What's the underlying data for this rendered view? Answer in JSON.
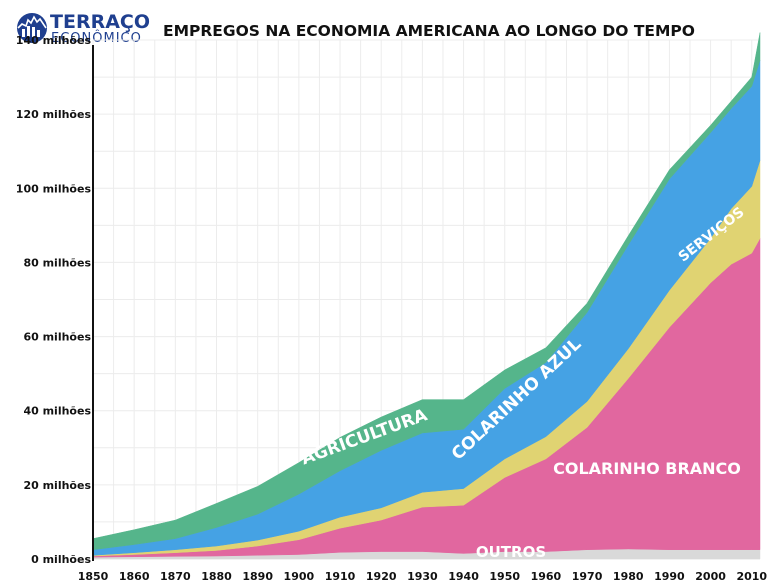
{
  "logo": {
    "name": "TERRAÇO",
    "sub": "ECONÔMICO",
    "color": "#1f3f8f"
  },
  "chart_data": {
    "type": "area",
    "stacked": true,
    "title": "EMPREGOS NA ECONOMIA AMERICANA AO LONGO DO TEMPO",
    "xlabel": "",
    "ylabel": "",
    "x": [
      1850,
      1860,
      1870,
      1880,
      1890,
      1900,
      1910,
      1920,
      1930,
      1940,
      1950,
      1960,
      1970,
      1980,
      1990,
      2000,
      2005,
      2010,
      2012
    ],
    "x_ticks": [
      1850,
      1860,
      1870,
      1880,
      1890,
      1900,
      1910,
      1920,
      1930,
      1940,
      1950,
      1960,
      1970,
      1980,
      1990,
      2000,
      2010
    ],
    "ylim": [
      0,
      140
    ],
    "y_ticks": [
      0,
      20,
      40,
      60,
      80,
      100,
      120,
      140
    ],
    "y_tick_labels": [
      "0 milhões",
      "20 milhões",
      "40 milhões",
      "60 milhões",
      "80 milhões",
      "100 milhões",
      "120 milhões",
      "140 milhões"
    ],
    "grid": true,
    "series": [
      {
        "name": "OUTROS",
        "color": "#d9d9d9",
        "values": [
          0.5,
          0.6,
          0.7,
          0.8,
          1.0,
          1.2,
          1.8,
          2.0,
          2.0,
          1.5,
          2.0,
          2.0,
          2.5,
          2.7,
          2.5,
          2.5,
          2.5,
          2.5,
          2.5
        ]
      },
      {
        "name": "COLARINHO BRANCO",
        "color": "#e1679f",
        "values": [
          0.3,
          0.6,
          1.0,
          1.5,
          2.5,
          4.0,
          6.5,
          8.5,
          12.0,
          13.0,
          20.0,
          25.0,
          33.0,
          46.0,
          60.0,
          72.0,
          77.0,
          80.0,
          84.0
        ]
      },
      {
        "name": "SERVIÇOS",
        "color": "#e0d372",
        "values": [
          0.2,
          0.5,
          0.8,
          1.2,
          1.6,
          2.3,
          3.0,
          3.3,
          4.0,
          4.5,
          5.0,
          6.0,
          7.0,
          8.0,
          10.0,
          12.0,
          15.0,
          18.0,
          21.0
        ]
      },
      {
        "name": "COLARINHO AZUL",
        "color": "#45a2e4",
        "values": [
          1.5,
          2.2,
          3.0,
          5.0,
          7.0,
          10.0,
          12.5,
          15.5,
          16.0,
          16.0,
          19.0,
          20.0,
          24.0,
          28.0,
          30.0,
          28.5,
          27.0,
          27.0,
          27.0
        ]
      },
      {
        "name": "AGRICULTURA",
        "color": "#55b58b",
        "values": [
          3.0,
          4.0,
          5.0,
          6.5,
          7.5,
          8.5,
          9.0,
          9.0,
          9.0,
          8.0,
          5.0,
          4.0,
          2.5,
          2.5,
          2.5,
          2.0,
          2.0,
          2.5,
          7.5
        ]
      }
    ],
    "area_labels": [
      "AGRICULTURA",
      "COLARINHO AZUL",
      "SERVIÇOS",
      "COLARINHO BRANCO",
      "OUTROS"
    ]
  }
}
